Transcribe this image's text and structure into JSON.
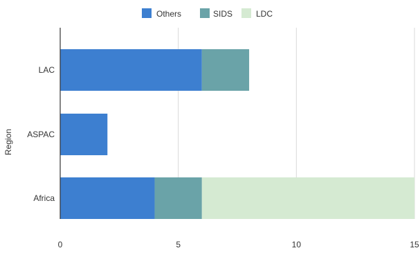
{
  "chart_data": {
    "type": "bar",
    "orientation": "horizontal",
    "stacked": true,
    "title": "",
    "xlabel": "",
    "ylabel": "Region",
    "categories": [
      "LAC",
      "ASPAC",
      "Africa"
    ],
    "series": [
      {
        "name": "Others",
        "values": [
          6,
          2,
          4
        ],
        "color": "#3d7fd0"
      },
      {
        "name": "SIDS",
        "values": [
          2,
          0,
          2
        ],
        "color": "#6aa3a8"
      },
      {
        "name": "LDC",
        "values": [
          0,
          0,
          9
        ],
        "color": "#d5ead2"
      }
    ],
    "xlim": [
      0,
      15
    ],
    "xticks": [
      "0",
      "5",
      "10",
      "15"
    ],
    "grid": "vertical",
    "legend_position": "top"
  }
}
